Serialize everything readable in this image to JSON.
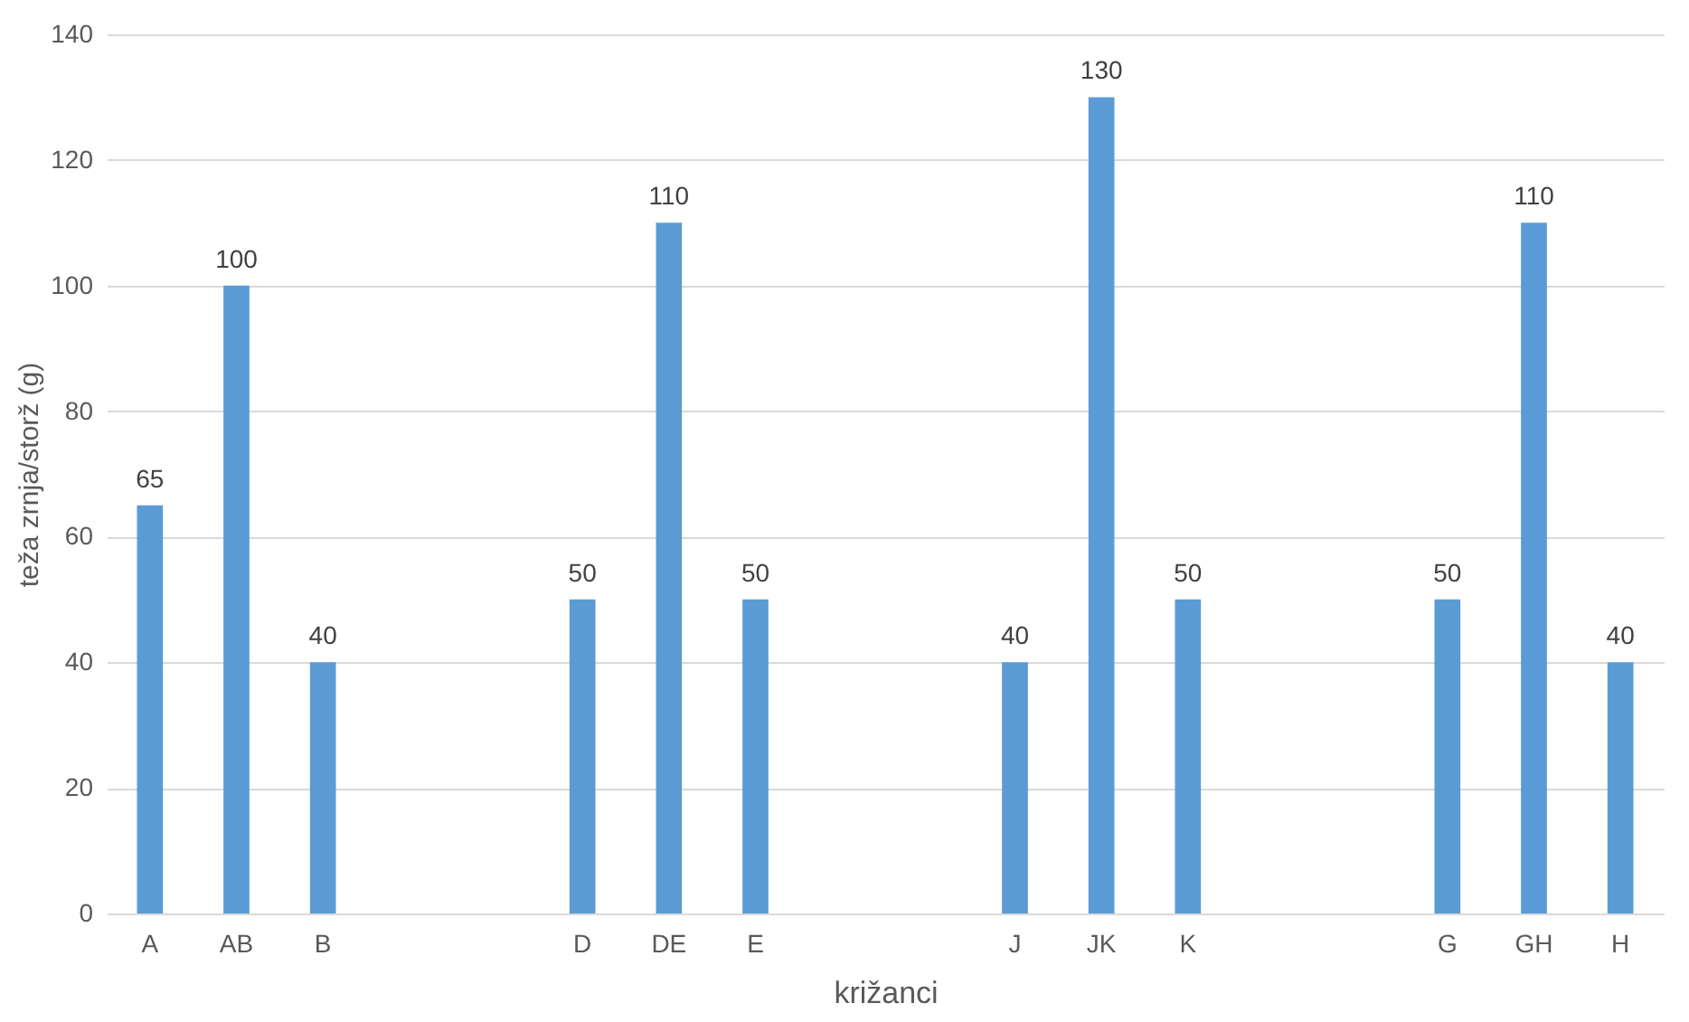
{
  "chart_data": {
    "type": "bar",
    "xlabel": "križanci",
    "ylabel": "teža zrnja/storž (g)",
    "categories": [
      "A",
      "AB",
      "B",
      null,
      null,
      "D",
      "DE",
      "E",
      null,
      null,
      "J",
      "JK",
      "K",
      null,
      null,
      "G",
      "GH",
      "H"
    ],
    "values": [
      65,
      100,
      40,
      null,
      null,
      50,
      110,
      50,
      null,
      null,
      40,
      130,
      50,
      null,
      null,
      50,
      110,
      40
    ],
    "color": "#5b9bd5",
    "ylim": [
      0,
      140
    ],
    "yticks": [
      0,
      20,
      40,
      60,
      80,
      100,
      120,
      140
    ],
    "grid": "y",
    "data_labels": true
  }
}
